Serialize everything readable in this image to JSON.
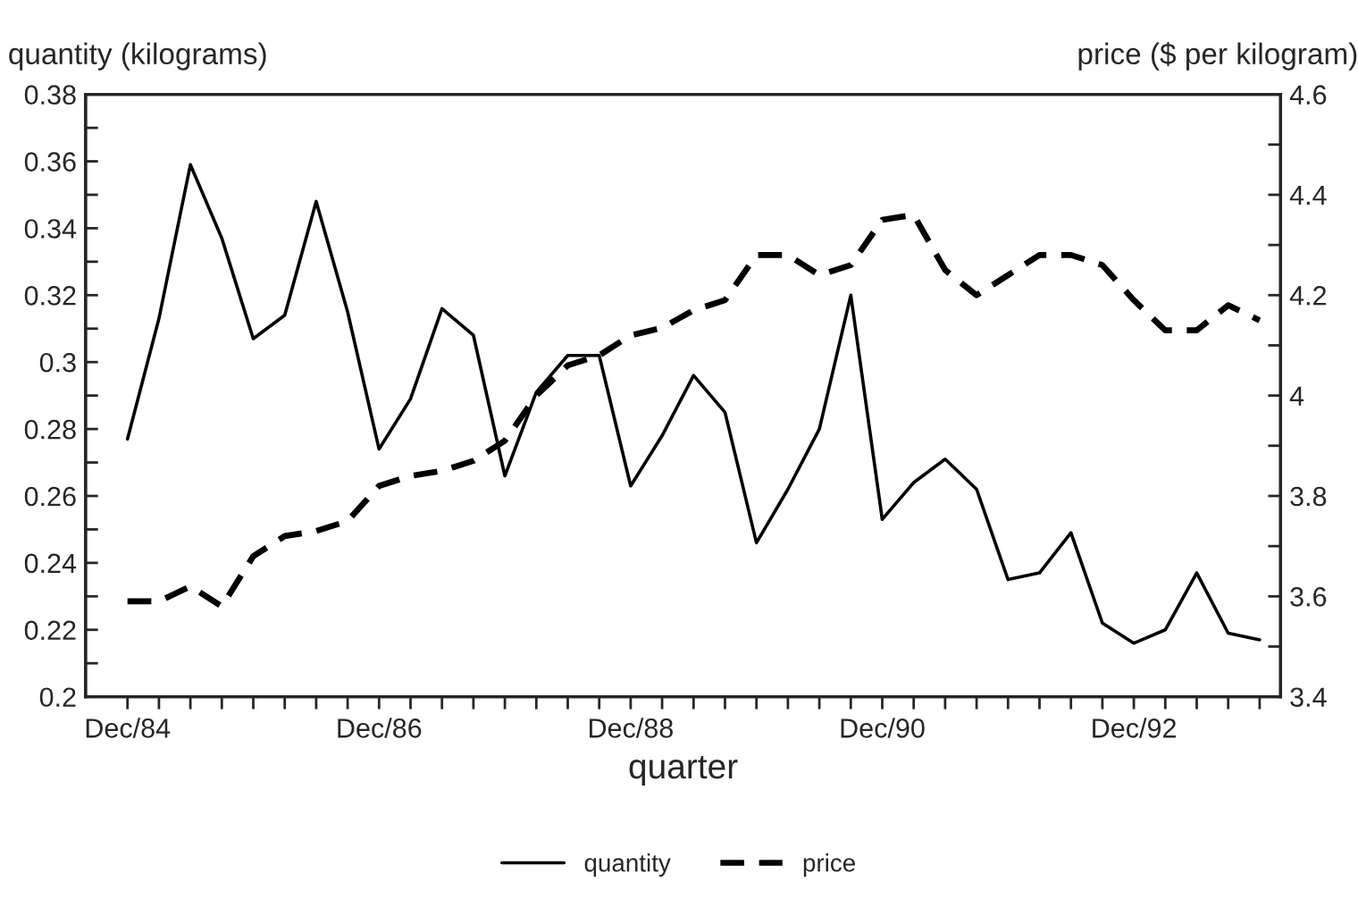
{
  "chart_data": {
    "type": "line",
    "xlabel": "quarter",
    "ylabel": "quantity (kilograms)",
    "y2label": "price ($ per kilogram)",
    "x": [
      "1984-12",
      "1985-03",
      "1985-06",
      "1985-09",
      "1985-12",
      "1986-03",
      "1986-06",
      "1986-09",
      "1986-12",
      "1987-03",
      "1987-06",
      "1987-09",
      "1987-12",
      "1988-03",
      "1988-06",
      "1988-09",
      "1988-12",
      "1989-03",
      "1989-06",
      "1989-09",
      "1989-12",
      "1990-03",
      "1990-06",
      "1990-09",
      "1990-12",
      "1991-03",
      "1991-06",
      "1991-09",
      "1991-12",
      "1992-03",
      "1992-06",
      "1992-09",
      "1992-12",
      "1993-03",
      "1993-06",
      "1993-09",
      "1993-12"
    ],
    "series": [
      {
        "name": "quantity",
        "color": "#000000",
        "line_style": "solid",
        "values": [
          0.277,
          0.313,
          0.359,
          0.337,
          0.307,
          0.314,
          0.348,
          0.315,
          0.274,
          0.289,
          0.316,
          0.308,
          0.266,
          0.291,
          0.302,
          0.302,
          0.263,
          0.278,
          0.296,
          0.285,
          0.246,
          0.262,
          0.28,
          0.32,
          0.253,
          0.264,
          0.271,
          0.262,
          0.235,
          0.237,
          0.249,
          0.222,
          0.216,
          0.22,
          0.237,
          0.219,
          0.217
        ]
      },
      {
        "name": "price",
        "color": "#000000",
        "line_style": "dashed",
        "axis": "y2",
        "values": [
          3.59,
          3.59,
          3.62,
          3.58,
          3.68,
          3.72,
          3.73,
          3.75,
          3.82,
          3.84,
          3.85,
          3.87,
          3.91,
          4.0,
          4.06,
          4.08,
          4.12,
          4.135,
          4.17,
          4.19,
          4.28,
          4.28,
          4.24,
          4.26,
          4.35,
          4.36,
          4.25,
          4.2,
          4.24,
          4.28,
          4.28,
          4.26,
          4.19,
          4.13,
          4.13,
          4.18,
          4.15
        ]
      }
    ],
    "xlim": [
      "1984-08",
      "1994-02"
    ],
    "xticks": [
      {
        "value": "1984-12",
        "label": "Dec/84"
      },
      {
        "value": "1985-03",
        "label": null
      },
      {
        "value": "1985-06",
        "label": null
      },
      {
        "value": "1985-09",
        "label": null
      },
      {
        "value": "1985-12",
        "label": null
      },
      {
        "value": "1986-03",
        "label": null
      },
      {
        "value": "1986-06",
        "label": null
      },
      {
        "value": "1986-09",
        "label": null
      },
      {
        "value": "1986-12",
        "label": "Dec/86"
      },
      {
        "value": "1987-03",
        "label": null
      },
      {
        "value": "1987-06",
        "label": null
      },
      {
        "value": "1987-09",
        "label": null
      },
      {
        "value": "1987-12",
        "label": null
      },
      {
        "value": "1988-03",
        "label": null
      },
      {
        "value": "1988-06",
        "label": null
      },
      {
        "value": "1988-09",
        "label": null
      },
      {
        "value": "1988-12",
        "label": "Dec/88"
      },
      {
        "value": "1989-03",
        "label": null
      },
      {
        "value": "1989-06",
        "label": null
      },
      {
        "value": "1989-09",
        "label": null
      },
      {
        "value": "1989-12",
        "label": null
      },
      {
        "value": "1990-03",
        "label": null
      },
      {
        "value": "1990-06",
        "label": null
      },
      {
        "value": "1990-09",
        "label": null
      },
      {
        "value": "1990-12",
        "label": "Dec/90"
      },
      {
        "value": "1991-03",
        "label": null
      },
      {
        "value": "1991-06",
        "label": null
      },
      {
        "value": "1991-09",
        "label": null
      },
      {
        "value": "1991-12",
        "label": null
      },
      {
        "value": "1992-03",
        "label": null
      },
      {
        "value": "1992-06",
        "label": null
      },
      {
        "value": "1992-09",
        "label": null
      },
      {
        "value": "1992-12",
        "label": "Dec/92"
      },
      {
        "value": "1993-03",
        "label": null
      },
      {
        "value": "1993-06",
        "label": null
      },
      {
        "value": "1993-09",
        "label": null
      },
      {
        "value": "1993-12",
        "label": null
      }
    ],
    "ylim": [
      0.2,
      0.38
    ],
    "yticks": [
      0.2,
      {
        "value": 0.21,
        "label": null
      },
      0.22,
      {
        "value": 0.23,
        "label": null
      },
      0.24,
      {
        "value": 0.25,
        "label": null
      },
      0.26,
      {
        "value": 0.27,
        "label": null
      },
      0.28,
      {
        "value": 0.29,
        "label": null
      },
      0.3,
      {
        "value": 0.31,
        "label": null
      },
      0.32,
      {
        "value": 0.33,
        "label": null
      },
      0.34,
      {
        "value": 0.35,
        "label": null
      },
      0.36,
      {
        "value": 0.37,
        "label": null
      },
      0.38
    ],
    "y2lim": [
      3.4,
      4.6
    ],
    "y2ticks": [
      3.4,
      {
        "value": 3.5,
        "label": null
      },
      3.6,
      {
        "value": 3.7,
        "label": null
      },
      3.8,
      {
        "value": 3.9,
        "label": null
      },
      4,
      {
        "value": 4.1,
        "label": null
      },
      4.2,
      {
        "value": 4.3,
        "label": null
      },
      4.4,
      {
        "value": 4.5,
        "label": null
      },
      4.6
    ],
    "grid": false,
    "legend": "bottom"
  }
}
